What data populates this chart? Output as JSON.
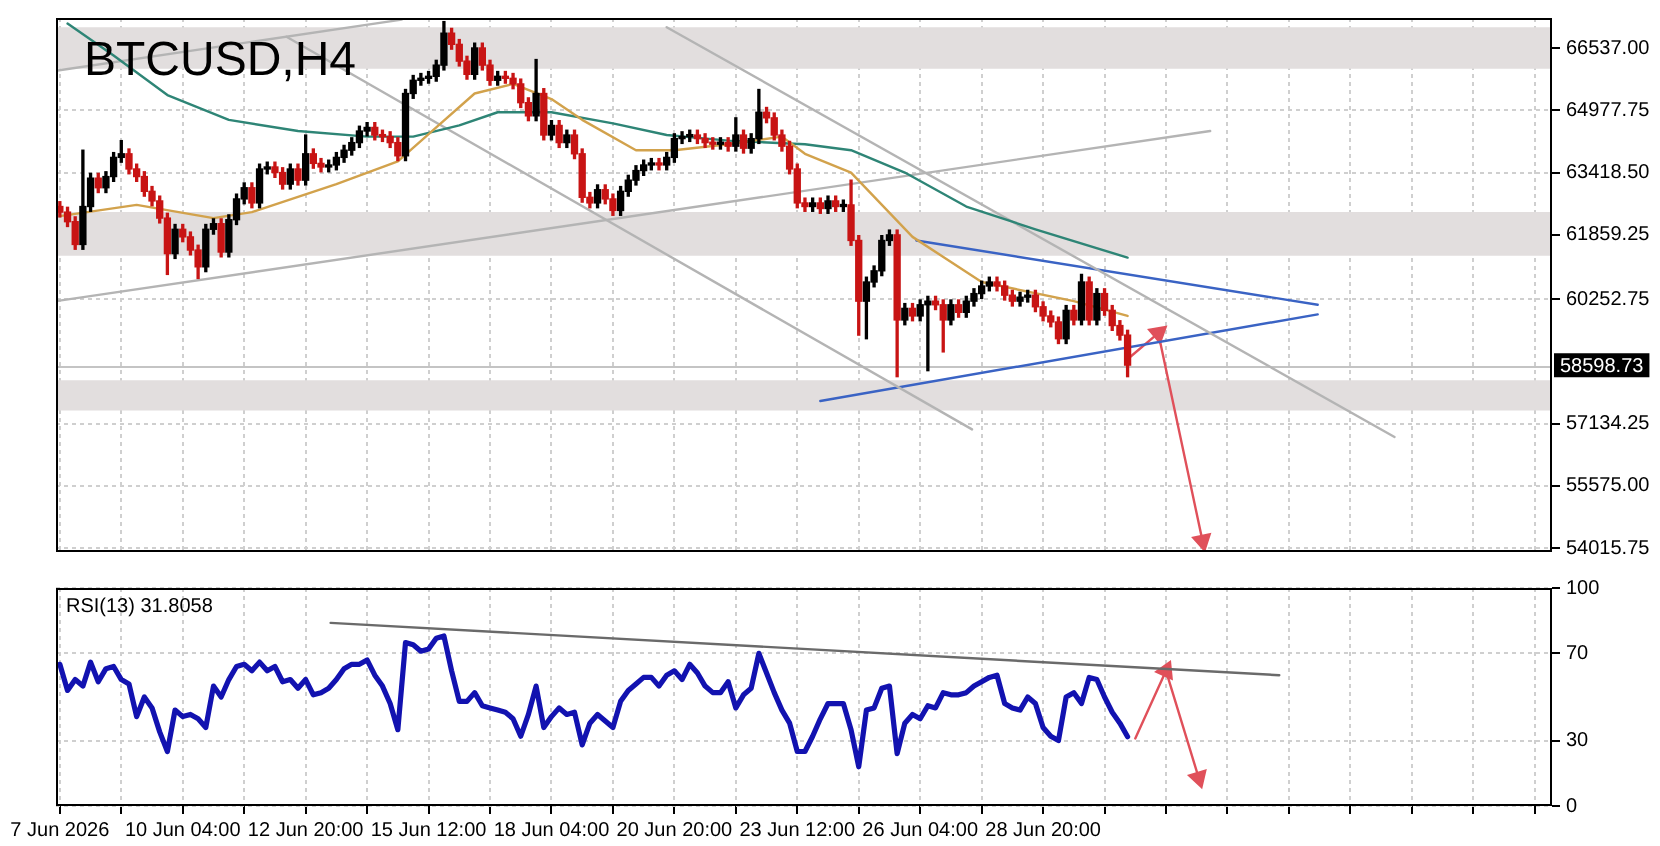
{
  "chart_data": [
    {
      "type": "candlestick",
      "title": "BTCUSD,H4",
      "x": [
        "2026-06-07T12:00",
        "2026-06-07T16:00",
        "2026-06-07T20:00",
        "2026-06-08T00:00",
        "2026-06-08T04:00",
        "2026-06-08T08:00",
        "2026-06-08T12:00",
        "2026-06-08T16:00",
        "2026-06-08T20:00",
        "2026-06-09T00:00",
        "2026-06-09T04:00",
        "2026-06-09T08:00",
        "2026-06-09T12:00",
        "2026-06-09T16:00",
        "2026-06-09T20:00",
        "2026-06-10T00:00",
        "2026-06-10T04:00",
        "2026-06-10T08:00",
        "2026-06-10T12:00",
        "2026-06-10T16:00",
        "2026-06-10T20:00",
        "2026-06-11T00:00",
        "2026-06-11T04:00",
        "2026-06-11T08:00",
        "2026-06-11T12:00",
        "2026-06-11T16:00",
        "2026-06-11T20:00",
        "2026-06-12T00:00",
        "2026-06-12T04:00",
        "2026-06-12T08:00",
        "2026-06-12T12:00",
        "2026-06-12T16:00",
        "2026-06-12T20:00",
        "2026-06-13T00:00",
        "2026-06-13T04:00",
        "2026-06-13T08:00",
        "2026-06-13T12:00",
        "2026-06-13T16:00",
        "2026-06-13T20:00",
        "2026-06-14T00:00",
        "2026-06-14T04:00",
        "2026-06-14T08:00",
        "2026-06-14T12:00",
        "2026-06-14T16:00",
        "2026-06-14T20:00",
        "2026-06-15T00:00",
        "2026-06-15T04:00",
        "2026-06-15T08:00",
        "2026-06-15T12:00",
        "2026-06-15T16:00",
        "2026-06-15T20:00",
        "2026-06-16T00:00",
        "2026-06-16T04:00",
        "2026-06-16T08:00",
        "2026-06-16T12:00",
        "2026-06-16T16:00",
        "2026-06-16T20:00",
        "2026-06-17T00:00",
        "2026-06-17T04:00",
        "2026-06-17T08:00",
        "2026-06-17T12:00",
        "2026-06-17T16:00",
        "2026-06-17T20:00",
        "2026-06-18T00:00",
        "2026-06-18T04:00",
        "2026-06-18T08:00",
        "2026-06-18T12:00",
        "2026-06-18T16:00",
        "2026-06-18T20:00",
        "2026-06-19T00:00",
        "2026-06-19T04:00",
        "2026-06-19T08:00",
        "2026-06-19T12:00",
        "2026-06-19T16:00",
        "2026-06-19T20:00",
        "2026-06-20T00:00",
        "2026-06-20T04:00",
        "2026-06-20T08:00",
        "2026-06-20T12:00",
        "2026-06-20T16:00",
        "2026-06-20T20:00",
        "2026-06-21T00:00",
        "2026-06-21T04:00",
        "2026-06-21T08:00",
        "2026-06-21T12:00",
        "2026-06-21T16:00",
        "2026-06-21T20:00",
        "2026-06-22T00:00",
        "2026-06-22T04:00",
        "2026-06-22T08:00",
        "2026-06-22T12:00",
        "2026-06-22T16:00",
        "2026-06-22T20:00",
        "2026-06-23T00:00",
        "2026-06-23T04:00",
        "2026-06-23T08:00",
        "2026-06-23T12:00",
        "2026-06-23T16:00",
        "2026-06-23T20:00",
        "2026-06-24T00:00",
        "2026-06-24T04:00",
        "2026-06-24T08:00",
        "2026-06-24T12:00",
        "2026-06-24T16:00",
        "2026-06-24T20:00",
        "2026-06-25T00:00",
        "2026-06-25T04:00",
        "2026-06-25T08:00",
        "2026-06-25T12:00",
        "2026-06-25T16:00",
        "2026-06-25T20:00",
        "2026-06-26T00:00",
        "2026-06-26T04:00",
        "2026-06-26T08:00",
        "2026-06-26T12:00",
        "2026-06-26T16:00",
        "2026-06-26T20:00",
        "2026-06-27T00:00",
        "2026-06-27T04:00",
        "2026-06-27T08:00",
        "2026-06-27T12:00",
        "2026-06-27T16:00",
        "2026-06-27T20:00",
        "2026-06-28T00:00",
        "2026-06-28T04:00",
        "2026-06-28T08:00",
        "2026-06-28T12:00",
        "2026-06-28T16:00",
        "2026-06-28T20:00",
        "2026-06-29T00:00",
        "2026-06-29T04:00",
        "2026-06-29T08:00",
        "2026-06-29T12:00",
        "2026-06-29T16:00",
        "2026-06-29T20:00",
        "2026-06-30T00:00",
        "2026-06-30T04:00",
        "2026-06-30T08:00",
        "2026-06-30T12:00",
        "2026-06-30T16:00"
      ],
      "ohlc": [
        [
          62570,
          62690,
          62310,
          62430
        ],
        [
          62430,
          62550,
          62070,
          62190
        ],
        [
          62190,
          62310,
          61500,
          61620
        ],
        [
          61620,
          63980,
          61500,
          62570
        ],
        [
          62570,
          63400,
          62450,
          63280
        ],
        [
          63280,
          63400,
          62920,
          63040
        ],
        [
          63040,
          63440,
          62920,
          63320
        ],
        [
          63320,
          63920,
          63200,
          63800
        ],
        [
          63800,
          64220,
          63680,
          63890
        ],
        [
          63890,
          64010,
          63390,
          63510
        ],
        [
          63510,
          63630,
          63200,
          63320
        ],
        [
          63320,
          63440,
          62830,
          62950
        ],
        [
          62950,
          63070,
          62590,
          62710
        ],
        [
          62710,
          62830,
          62160,
          62280
        ],
        [
          62280,
          62400,
          60870,
          61390
        ],
        [
          61390,
          62120,
          61270,
          62000
        ],
        [
          62000,
          62120,
          61690,
          61810
        ],
        [
          61810,
          61930,
          61360,
          61480
        ],
        [
          61480,
          61600,
          60770,
          61060
        ],
        [
          61060,
          62120,
          60940,
          62000
        ],
        [
          62000,
          62260,
          61880,
          62140
        ],
        [
          62140,
          62260,
          61310,
          61430
        ],
        [
          61430,
          62360,
          61310,
          62240
        ],
        [
          62240,
          62880,
          62120,
          62760
        ],
        [
          62760,
          63160,
          62640,
          63040
        ],
        [
          63040,
          63160,
          62540,
          62660
        ],
        [
          62660,
          63630,
          62540,
          63510
        ],
        [
          63510,
          63680,
          63390,
          63560
        ],
        [
          63560,
          63680,
          63300,
          63420
        ],
        [
          63420,
          63540,
          63010,
          63130
        ],
        [
          63130,
          63630,
          63010,
          63510
        ],
        [
          63510,
          63630,
          63110,
          63230
        ],
        [
          63230,
          64360,
          63110,
          63890
        ],
        [
          63890,
          64010,
          63530,
          63650
        ],
        [
          63650,
          63770,
          63440,
          63560
        ],
        [
          63560,
          63730,
          63440,
          63610
        ],
        [
          63610,
          63920,
          63490,
          63800
        ],
        [
          63800,
          64100,
          63680,
          63980
        ],
        [
          63980,
          64290,
          63860,
          64170
        ],
        [
          64170,
          64580,
          64050,
          64460
        ],
        [
          64460,
          64670,
          64340,
          64550
        ],
        [
          64550,
          64670,
          64240,
          64360
        ],
        [
          64360,
          64480,
          64200,
          64320
        ],
        [
          64320,
          64440,
          64050,
          64170
        ],
        [
          64170,
          64290,
          63720,
          63840
        ],
        [
          63840,
          65500,
          63720,
          65400
        ],
        [
          65400,
          65850,
          65280,
          65730
        ],
        [
          65730,
          65900,
          65610,
          65780
        ],
        [
          65780,
          65950,
          65660,
          65830
        ],
        [
          65830,
          66230,
          65710,
          66110
        ],
        [
          66110,
          67200,
          65990,
          66910
        ],
        [
          66910,
          67030,
          66510,
          66630
        ],
        [
          66630,
          66750,
          66090,
          66210
        ],
        [
          66210,
          66330,
          65760,
          65880
        ],
        [
          65880,
          66660,
          65760,
          66540
        ],
        [
          66540,
          66660,
          65990,
          66110
        ],
        [
          66110,
          66230,
          65610,
          65730
        ],
        [
          65730,
          65950,
          65610,
          65830
        ],
        [
          65830,
          65950,
          65660,
          65780
        ],
        [
          65780,
          65900,
          65520,
          65640
        ],
        [
          65640,
          65760,
          65050,
          65170
        ],
        [
          65170,
          65290,
          64720,
          64840
        ],
        [
          64840,
          66250,
          64720,
          65400
        ],
        [
          65400,
          65520,
          64240,
          64360
        ],
        [
          64360,
          64720,
          64240,
          64600
        ],
        [
          64600,
          64720,
          64050,
          64170
        ],
        [
          64170,
          64480,
          64050,
          64360
        ],
        [
          64360,
          64480,
          63770,
          63890
        ],
        [
          63890,
          64010,
          62680,
          62800
        ],
        [
          62800,
          62920,
          62540,
          62660
        ],
        [
          62660,
          63110,
          62540,
          62990
        ],
        [
          62990,
          63110,
          62640,
          62760
        ],
        [
          62760,
          62880,
          62350,
          62470
        ],
        [
          62470,
          63070,
          62350,
          62950
        ],
        [
          62950,
          63350,
          62830,
          63230
        ],
        [
          63230,
          63590,
          63110,
          63470
        ],
        [
          63470,
          63730,
          63350,
          63610
        ],
        [
          63610,
          63770,
          63490,
          63650
        ],
        [
          63650,
          63770,
          63490,
          63610
        ],
        [
          63610,
          63920,
          63490,
          63800
        ],
        [
          63800,
          64390,
          63680,
          64270
        ],
        [
          64270,
          64440,
          64150,
          64320
        ],
        [
          64320,
          64480,
          64200,
          64360
        ],
        [
          64360,
          64480,
          64150,
          64270
        ],
        [
          64270,
          64390,
          64050,
          64170
        ],
        [
          64170,
          64290,
          64010,
          64130
        ],
        [
          64130,
          64290,
          64010,
          64170
        ],
        [
          64170,
          64290,
          63960,
          64080
        ],
        [
          64080,
          64790,
          63960,
          64360
        ],
        [
          64360,
          64480,
          63910,
          64030
        ],
        [
          64030,
          64390,
          63910,
          64270
        ],
        [
          64270,
          65500,
          64150,
          64930
        ],
        [
          64930,
          65050,
          64670,
          64790
        ],
        [
          64790,
          64910,
          64240,
          64360
        ],
        [
          64360,
          64480,
          63960,
          64080
        ],
        [
          64080,
          64200,
          63390,
          63510
        ],
        [
          63510,
          63630,
          62540,
          62660
        ],
        [
          62660,
          62780,
          62450,
          62570
        ],
        [
          62570,
          62780,
          62450,
          62660
        ],
        [
          62660,
          62780,
          62400,
          62520
        ],
        [
          62520,
          62830,
          62400,
          62710
        ],
        [
          62710,
          62830,
          62450,
          62570
        ],
        [
          62570,
          62730,
          62450,
          62610
        ],
        [
          62610,
          63230,
          61600,
          61720
        ],
        [
          61720,
          61840,
          59350,
          60200
        ],
        [
          60200,
          60800,
          59260,
          60680
        ],
        [
          60680,
          61080,
          60560,
          60960
        ],
        [
          60960,
          61840,
          60840,
          61720
        ],
        [
          61720,
          61980,
          61600,
          61860
        ],
        [
          61860,
          61980,
          58310,
          59730
        ],
        [
          59730,
          60140,
          59610,
          60020
        ],
        [
          60020,
          60140,
          59710,
          59830
        ],
        [
          59830,
          60230,
          59710,
          60110
        ],
        [
          60110,
          60320,
          58460,
          60200
        ],
        [
          60200,
          60320,
          59990,
          60110
        ],
        [
          60110,
          60230,
          58930,
          59730
        ],
        [
          59730,
          60230,
          59610,
          60110
        ],
        [
          60110,
          60230,
          59800,
          59920
        ],
        [
          59920,
          60320,
          59800,
          60200
        ],
        [
          60200,
          60510,
          60080,
          60390
        ],
        [
          60390,
          60700,
          60270,
          60580
        ],
        [
          60580,
          60800,
          60460,
          60680
        ],
        [
          60680,
          60800,
          60460,
          60580
        ],
        [
          60580,
          60700,
          60230,
          60350
        ],
        [
          60350,
          60470,
          60080,
          60200
        ],
        [
          60200,
          60420,
          60080,
          60300
        ],
        [
          60300,
          60470,
          60180,
          60350
        ],
        [
          60350,
          60470,
          59940,
          60060
        ],
        [
          60060,
          60180,
          59710,
          59830
        ],
        [
          59830,
          59950,
          59560,
          59680
        ],
        [
          59680,
          59800,
          59140,
          59260
        ],
        [
          59260,
          60090,
          59140,
          59970
        ],
        [
          59970,
          60090,
          59610,
          59730
        ],
        [
          59730,
          60870,
          59610,
          60680
        ],
        [
          60680,
          60800,
          59610,
          59730
        ],
        [
          59730,
          60510,
          59610,
          60390
        ],
        [
          60390,
          60510,
          59850,
          59970
        ],
        [
          59970,
          60090,
          59470,
          59590
        ],
        [
          59590,
          59710,
          59230,
          59350
        ],
        [
          59350,
          59470,
          58310,
          58598.73
        ]
      ],
      "colors": [
        "#c81414",
        "#c81414",
        "#c81414",
        "#000000",
        "#000000",
        "#c81414",
        "#000000",
        "#000000",
        "#000000",
        "#c81414",
        "#c81414",
        "#c81414",
        "#c81414",
        "#c81414",
        "#c81414",
        "#000000",
        "#c81414",
        "#c81414",
        "#c81414",
        "#000000",
        "#000000",
        "#c81414",
        "#000000",
        "#000000",
        "#000000",
        "#c81414",
        "#000000",
        "#000000",
        "#c81414",
        "#c81414",
        "#000000",
        "#c81414",
        "#000000",
        "#c81414",
        "#c81414",
        "#000000",
        "#000000",
        "#000000",
        "#000000",
        "#000000",
        "#000000",
        "#c81414",
        "#c81414",
        "#c81414",
        "#c81414",
        "#000000",
        "#000000",
        "#000000",
        "#000000",
        "#000000",
        "#000000",
        "#c81414",
        "#c81414",
        "#c81414",
        "#000000",
        "#c81414",
        "#c81414",
        "#000000",
        "#c81414",
        "#c81414",
        "#c81414",
        "#c81414",
        "#000000",
        "#c81414",
        "#000000",
        "#c81414",
        "#000000",
        "#c81414",
        "#c81414",
        "#c81414",
        "#000000",
        "#c81414",
        "#c81414",
        "#000000",
        "#000000",
        "#000000",
        "#000000",
        "#000000",
        "#c81414",
        "#000000",
        "#000000",
        "#000000",
        "#000000",
        "#c81414",
        "#c81414",
        "#c81414",
        "#000000",
        "#c81414",
        "#000000",
        "#c81414",
        "#000000",
        "#000000",
        "#c81414",
        "#c81414",
        "#c81414",
        "#c81414",
        "#c81414",
        "#c81414",
        "#000000",
        "#c81414",
        "#000000",
        "#c81414",
        "#000000",
        "#c81414",
        "#c81414",
        "#000000",
        "#000000",
        "#000000",
        "#000000",
        "#c81414",
        "#000000",
        "#c81414",
        "#000000",
        "#000000",
        "#c81414",
        "#c81414",
        "#000000",
        "#c81414",
        "#000000",
        "#000000",
        "#000000",
        "#000000",
        "#c81414",
        "#c81414",
        "#c81414",
        "#000000",
        "#000000",
        "#c81414",
        "#c81414",
        "#c81414",
        "#c81414",
        "#000000",
        "#c81414",
        "#000000",
        "#c81414",
        "#000000",
        "#c81414",
        "#c81414",
        "#c81414",
        "#c81414"
      ],
      "series": [
        {
          "type": "line",
          "color": "#d2a24c",
          "x": [
            "2026-06-07T12:00",
            "2026-06-09T04:00",
            "2026-06-10T20:00",
            "2026-06-11T16:00",
            "2026-06-13T12:00",
            "2026-06-14T20:00",
            "2026-06-15T16:00",
            "2026-06-16T12:00",
            "2026-06-17T08:00",
            "2026-06-18T04:00",
            "2026-06-18T20:00",
            "2026-06-20T00:00",
            "2026-06-20T20:00",
            "2026-06-22T00:00",
            "2026-06-23T04:00",
            "2026-06-23T16:00",
            "2026-06-24T16:00",
            "2026-06-26T00:00",
            "2026-06-27T12:00",
            "2026-06-29T12:00",
            "2026-06-30T16:00"
          ],
          "values": [
            62330,
            62610,
            62280,
            62430,
            63130,
            63700,
            64550,
            65400,
            65640,
            65260,
            64740,
            63980,
            63980,
            64130,
            64320,
            63890,
            63420,
            61810,
            60680,
            60200,
            59830
          ]
        },
        {
          "type": "line",
          "color": "#2e8576",
          "x": [
            "2026-06-07T16:00",
            "2026-06-08T16:00",
            "2026-06-09T20:00",
            "2026-06-11T04:00",
            "2026-06-12T16:00",
            "2026-06-14T04:00",
            "2026-06-15T04:00",
            "2026-06-16T04:00",
            "2026-06-17T00:00",
            "2026-06-18T04:00",
            "2026-06-19T12:00",
            "2026-06-20T16:00",
            "2026-06-22T00:00",
            "2026-06-23T16:00",
            "2026-06-24T16:00",
            "2026-06-25T20:00",
            "2026-06-27T04:00",
            "2026-06-28T16:00",
            "2026-06-30T16:00"
          ],
          "values": [
            67150,
            66350,
            65360,
            64740,
            64460,
            64320,
            64320,
            64600,
            64930,
            64930,
            64650,
            64360,
            64220,
            64130,
            63980,
            63420,
            62570,
            62000,
            61290
          ]
        },
        {
          "type": "line",
          "color": "#b4b4b4",
          "x": [
            "2026-06-07T10:00",
            "2026-07-02T11:00"
          ],
          "values": [
            60200,
            64460
          ]
        },
        {
          "type": "line",
          "color": "#b4b4b4",
          "x": [
            "2026-06-07T10:00",
            "2026-06-14T22:00"
          ],
          "values": [
            65970,
            67250
          ]
        },
        {
          "type": "line",
          "color": "#b4b4b4",
          "x": [
            "2026-06-12T10:00",
            "2026-06-27T07:00"
          ],
          "values": [
            66820,
            56990
          ]
        },
        {
          "type": "line",
          "color": "#b4b4b4",
          "x": [
            "2026-06-20T16:00",
            "2026-07-06T11:00"
          ],
          "values": [
            67060,
            56800
          ]
        },
        {
          "type": "line",
          "color": "#3a63c4",
          "x": [
            "2026-06-26T02:00",
            "2026-07-04T19:00"
          ],
          "values": [
            61720,
            60110
          ]
        },
        {
          "type": "line",
          "color": "#3a63c4",
          "x": [
            "2026-06-24T00:00",
            "2026-07-04T19:00"
          ],
          "values": [
            57700,
            59870
          ]
        },
        {
          "type": "line",
          "color": "#e0505a",
          "marker": "triangle",
          "x": [
            "2026-06-30T17:00",
            "2026-07-01T08:00",
            "2026-07-02T07:00"
          ],
          "values": [
            58790,
            59400,
            54200
          ]
        }
      ],
      "bands": [
        {
          "axis": "y",
          "from": 66020,
          "to": 67060,
          "color": "#e2dede"
        },
        {
          "axis": "y",
          "from": 61340,
          "to": 62430,
          "color": "#e2dede"
        },
        {
          "axis": "y",
          "from": 57460,
          "to": 58220,
          "color": "#e2dede"
        }
      ],
      "ref_lines": [
        {
          "axis": "y",
          "value": 58598.73,
          "label": "58598.73",
          "color": "#c4c4c4"
        }
      ],
      "xlim": [
        "2026-06-07T10:00",
        "2026-07-09T21:00"
      ],
      "xticks": [
        {
          "value": "2026-06-07T12:00",
          "label": null
        },
        {
          "value": "2026-06-08T20:00",
          "label": null
        },
        {
          "value": "2026-06-10T04:00",
          "label": null
        },
        {
          "value": "2026-06-11T12:00",
          "label": null
        },
        {
          "value": "2026-06-12T20:00",
          "label": null
        },
        {
          "value": "2026-06-14T04:00",
          "label": null
        },
        {
          "value": "2026-06-15T12:00",
          "label": null
        },
        {
          "value": "2026-06-16T20:00",
          "label": null
        },
        {
          "value": "2026-06-18T04:00",
          "label": null
        },
        {
          "value": "2026-06-19T12:00",
          "label": null
        },
        {
          "value": "2026-06-20T20:00",
          "label": null
        },
        {
          "value": "2026-06-22T04:00",
          "label": null
        },
        {
          "value": "2026-06-23T12:00",
          "label": null
        },
        {
          "value": "2026-06-24T20:00",
          "label": null
        },
        {
          "value": "2026-06-26T04:00",
          "label": null
        },
        {
          "value": "2026-06-27T12:00",
          "label": null
        },
        {
          "value": "2026-06-28T20:00",
          "label": null
        },
        {
          "value": "2026-06-30T04:00",
          "label": null
        },
        {
          "value": "2026-07-01T12:00",
          "label": null
        },
        {
          "value": "2026-07-02T20:00",
          "label": null
        },
        {
          "value": "2026-07-04T04:00",
          "label": null
        },
        {
          "value": "2026-07-05T12:00",
          "label": null
        },
        {
          "value": "2026-07-06T20:00",
          "label": null
        },
        {
          "value": "2026-07-08T04:00",
          "label": null
        },
        {
          "value": "2026-07-09T12:00",
          "label": null
        }
      ],
      "ylim": [
        53920,
        67290
      ],
      "yticks": [
        54015.75,
        {
          "value": 55575,
          "label": "55575.00"
        },
        57134.25,
        60252.75,
        61859.25,
        {
          "value": 63418.5,
          "label": "63418.50"
        },
        64977.75,
        {
          "value": 66537,
          "label": "66537.00"
        }
      ],
      "grid": true,
      "tick_labels": "y"
    },
    {
      "type": "line",
      "title": "RSI(13) 31.8058",
      "x": [
        "2026-06-07T12:00",
        "2026-06-07T16:00",
        "2026-06-07T20:00",
        "2026-06-08T00:00",
        "2026-06-08T04:00",
        "2026-06-08T08:00",
        "2026-06-08T12:00",
        "2026-06-08T16:00",
        "2026-06-08T20:00",
        "2026-06-09T00:00",
        "2026-06-09T04:00",
        "2026-06-09T08:00",
        "2026-06-09T12:00",
        "2026-06-09T16:00",
        "2026-06-09T20:00",
        "2026-06-10T00:00",
        "2026-06-10T04:00",
        "2026-06-10T08:00",
        "2026-06-10T12:00",
        "2026-06-10T16:00",
        "2026-06-10T20:00",
        "2026-06-11T00:00",
        "2026-06-11T04:00",
        "2026-06-11T08:00",
        "2026-06-11T12:00",
        "2026-06-11T16:00",
        "2026-06-11T20:00",
        "2026-06-12T00:00",
        "2026-06-12T04:00",
        "2026-06-12T08:00",
        "2026-06-12T12:00",
        "2026-06-12T16:00",
        "2026-06-12T20:00",
        "2026-06-13T00:00",
        "2026-06-13T04:00",
        "2026-06-13T08:00",
        "2026-06-13T12:00",
        "2026-06-13T16:00",
        "2026-06-13T20:00",
        "2026-06-14T00:00",
        "2026-06-14T04:00",
        "2026-06-14T08:00",
        "2026-06-14T12:00",
        "2026-06-14T16:00",
        "2026-06-14T20:00",
        "2026-06-15T00:00",
        "2026-06-15T04:00",
        "2026-06-15T08:00",
        "2026-06-15T12:00",
        "2026-06-15T16:00",
        "2026-06-15T20:00",
        "2026-06-16T00:00",
        "2026-06-16T04:00",
        "2026-06-16T08:00",
        "2026-06-16T12:00",
        "2026-06-16T16:00",
        "2026-06-16T20:00",
        "2026-06-17T00:00",
        "2026-06-17T04:00",
        "2026-06-17T08:00",
        "2026-06-17T12:00",
        "2026-06-17T16:00",
        "2026-06-17T20:00",
        "2026-06-18T00:00",
        "2026-06-18T04:00",
        "2026-06-18T08:00",
        "2026-06-18T12:00",
        "2026-06-18T16:00",
        "2026-06-18T20:00",
        "2026-06-19T00:00",
        "2026-06-19T04:00",
        "2026-06-19T08:00",
        "2026-06-19T12:00",
        "2026-06-19T16:00",
        "2026-06-19T20:00",
        "2026-06-20T00:00",
        "2026-06-20T04:00",
        "2026-06-20T08:00",
        "2026-06-20T12:00",
        "2026-06-20T16:00",
        "2026-06-20T20:00",
        "2026-06-21T00:00",
        "2026-06-21T04:00",
        "2026-06-21T08:00",
        "2026-06-21T12:00",
        "2026-06-21T16:00",
        "2026-06-21T20:00",
        "2026-06-22T00:00",
        "2026-06-22T04:00",
        "2026-06-22T08:00",
        "2026-06-22T12:00",
        "2026-06-22T16:00",
        "2026-06-22T20:00",
        "2026-06-23T00:00",
        "2026-06-23T04:00",
        "2026-06-23T08:00",
        "2026-06-23T12:00",
        "2026-06-23T16:00",
        "2026-06-23T20:00",
        "2026-06-24T00:00",
        "2026-06-24T04:00",
        "2026-06-24T08:00",
        "2026-06-24T12:00",
        "2026-06-24T16:00",
        "2026-06-24T20:00",
        "2026-06-25T00:00",
        "2026-06-25T04:00",
        "2026-06-25T08:00",
        "2026-06-25T12:00",
        "2026-06-25T16:00",
        "2026-06-25T20:00",
        "2026-06-26T00:00",
        "2026-06-26T04:00",
        "2026-06-26T08:00",
        "2026-06-26T12:00",
        "2026-06-26T16:00",
        "2026-06-26T20:00",
        "2026-06-27T00:00",
        "2026-06-27T04:00",
        "2026-06-27T08:00",
        "2026-06-27T12:00",
        "2026-06-27T16:00",
        "2026-06-27T20:00",
        "2026-06-28T00:00",
        "2026-06-28T04:00",
        "2026-06-28T08:00",
        "2026-06-28T12:00",
        "2026-06-28T16:00",
        "2026-06-28T20:00",
        "2026-06-29T00:00",
        "2026-06-29T04:00",
        "2026-06-29T08:00",
        "2026-06-29T12:00",
        "2026-06-29T16:00",
        "2026-06-29T20:00",
        "2026-06-30T00:00",
        "2026-06-30T04:00",
        "2026-06-30T08:00",
        "2026-06-30T12:00",
        "2026-06-30T16:00"
      ],
      "series": [
        {
          "color": "#1212b0",
          "values": [
            65,
            53,
            58,
            55,
            66,
            57,
            63,
            64,
            58,
            56,
            41,
            50,
            45,
            34,
            25,
            44,
            41,
            42,
            40,
            36,
            55,
            50,
            58,
            64,
            65,
            62,
            66,
            62,
            64,
            57,
            58,
            54,
            58,
            51,
            52,
            54,
            58,
            63,
            65,
            65,
            67,
            60,
            55,
            47,
            35,
            75,
            74,
            71,
            72,
            77,
            78,
            62,
            48,
            48,
            52,
            46,
            45,
            44,
            43,
            40,
            32,
            42,
            55,
            36,
            41,
            45,
            42,
            43,
            28,
            38,
            42,
            39,
            36,
            48,
            53,
            56,
            59,
            59,
            55,
            60,
            62,
            58,
            65,
            61,
            55,
            52,
            52,
            57,
            45,
            51,
            54,
            70,
            61,
            52,
            44,
            38,
            25,
            25,
            32,
            40,
            47,
            47,
            47,
            35,
            18,
            44,
            45,
            54,
            55,
            24,
            38,
            42,
            40,
            46,
            45,
            52,
            51,
            51,
            52,
            55,
            57,
            59,
            60,
            47,
            45,
            44,
            50,
            47,
            36,
            32,
            30,
            50,
            52,
            47,
            59,
            58,
            50,
            43,
            38,
            31.8058
          ]
        },
        {
          "color": "#6a6a6a",
          "x": [
            "2026-06-13T09:00",
            "2026-07-03T23:00"
          ],
          "values": [
            84,
            60
          ]
        },
        {
          "color": "#e0505a",
          "marker": "triangle",
          "x": [
            "2026-06-30T20:00",
            "2026-07-01T12:00",
            "2026-07-02T05:00"
          ],
          "values": [
            31,
            62,
            13
          ]
        }
      ],
      "xlim": [
        "2026-06-07T10:00",
        "2026-07-09T21:00"
      ],
      "xticks": [
        {
          "value": "2026-06-07T12:00",
          "label": "7 Jun 2026"
        },
        {
          "value": "2026-06-08T20:00",
          "label": null
        },
        {
          "value": "2026-06-10T04:00",
          "label": "10 Jun 04:00"
        },
        {
          "value": "2026-06-11T12:00",
          "label": null
        },
        {
          "value": "2026-06-12T20:00",
          "label": "12 Jun 20:00"
        },
        {
          "value": "2026-06-14T04:00",
          "label": null
        },
        {
          "value": "2026-06-15T12:00",
          "label": "15 Jun 12:00"
        },
        {
          "value": "2026-06-16T20:00",
          "label": null
        },
        {
          "value": "2026-06-18T04:00",
          "label": "18 Jun 04:00"
        },
        {
          "value": "2026-06-19T12:00",
          "label": null
        },
        {
          "value": "2026-06-20T20:00",
          "label": "20 Jun 20:00"
        },
        {
          "value": "2026-06-22T04:00",
          "label": null
        },
        {
          "value": "2026-06-23T12:00",
          "label": "23 Jun 12:00"
        },
        {
          "value": "2026-06-24T20:00",
          "label": null
        },
        {
          "value": "2026-06-26T04:00",
          "label": "26 Jun 04:00"
        },
        {
          "value": "2026-06-27T12:00",
          "label": null
        },
        {
          "value": "2026-06-28T20:00",
          "label": "28 Jun 20:00"
        },
        {
          "value": "2026-06-30T04:00",
          "label": null
        },
        {
          "value": "2026-07-01T12:00",
          "label": null
        },
        {
          "value": "2026-07-02T20:00",
          "label": null
        },
        {
          "value": "2026-07-04T04:00",
          "label": null
        },
        {
          "value": "2026-07-05T12:00",
          "label": null
        },
        {
          "value": "2026-07-06T20:00",
          "label": null
        },
        {
          "value": "2026-07-08T04:00",
          "label": null
        },
        {
          "value": "2026-07-09T12:00",
          "label": null
        }
      ],
      "ylim": [
        0,
        100
      ],
      "yticks": [
        0,
        30,
        70,
        100
      ],
      "grid": true
    }
  ]
}
